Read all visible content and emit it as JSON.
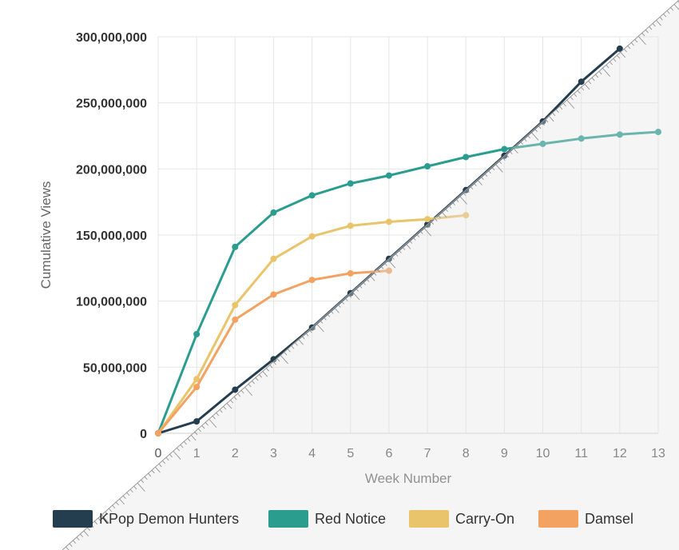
{
  "chart_data": {
    "type": "line",
    "xlabel": "Week Number",
    "ylabel": "Cumulative Views",
    "x_ticks": [
      "0",
      "1",
      "2",
      "3",
      "4",
      "5",
      "6",
      "7",
      "8",
      "9",
      "10",
      "11",
      "12",
      "13"
    ],
    "y_ticks": [
      "0",
      "50,000,000",
      "100,000,000",
      "150,000,000",
      "200,000,000",
      "250,000,000",
      "300,000,000"
    ],
    "xlim": [
      0,
      13
    ],
    "ylim": [
      0,
      300000000
    ],
    "grid": true,
    "legend_position": "bottom",
    "series": [
      {
        "name": "KPop Demon Hunters",
        "color": "#243e4f",
        "x": [
          0,
          1,
          2,
          3,
          4,
          5,
          6,
          7,
          8,
          9,
          10,
          11,
          12
        ],
        "values": [
          0,
          9000000,
          33000000,
          56000000,
          80000000,
          106000000,
          132000000,
          158000000,
          184000000,
          210000000,
          236000000,
          266000000,
          291000000
        ]
      },
      {
        "name": "Red Notice",
        "color": "#2a9d8f",
        "x": [
          0,
          1,
          2,
          3,
          4,
          5,
          6,
          7,
          8,
          9,
          10,
          11,
          12,
          13
        ],
        "values": [
          0,
          75000000,
          141000000,
          167000000,
          180000000,
          189000000,
          195000000,
          202000000,
          209000000,
          215000000,
          219000000,
          223000000,
          226000000,
          228000000
        ]
      },
      {
        "name": "Carry-On",
        "color": "#e9c46a",
        "x": [
          0,
          1,
          2,
          3,
          4,
          5,
          6,
          7,
          8
        ],
        "values": [
          0,
          41000000,
          97000000,
          132000000,
          149000000,
          157000000,
          160000000,
          162000000,
          165000000
        ]
      },
      {
        "name": "Damsel",
        "color": "#f4a261",
        "x": [
          0,
          1,
          2,
          3,
          4,
          5,
          6
        ],
        "values": [
          0,
          35000000,
          86000000,
          105000000,
          116000000,
          121000000,
          123000000
        ]
      }
    ]
  }
}
